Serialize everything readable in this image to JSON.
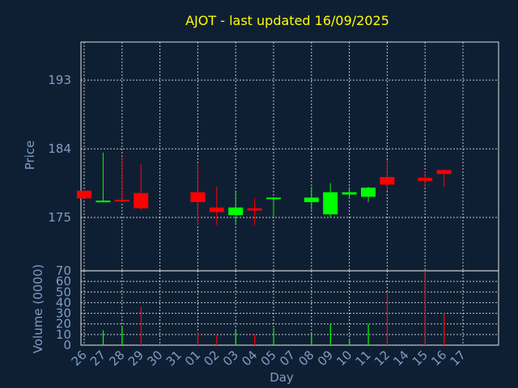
{
  "chart_data": [
    {
      "type": "candlestick",
      "title": "AJOT - last updated 16/09/2025",
      "ylabel": "Price",
      "ylim": [
        168,
        198
      ],
      "yticks": [
        166,
        175,
        184,
        193
      ],
      "grid": true,
      "colors": {
        "up": "#00ff00",
        "down": "#ff0000",
        "wick_up": "#00ff00",
        "wick_down": "#ff0000"
      },
      "categories": [
        "26",
        "27",
        "28",
        "29",
        "30",
        "31",
        "01",
        "02",
        "03",
        "04",
        "05",
        "07",
        "08",
        "09",
        "10",
        "11",
        "12",
        "14",
        "15",
        "16",
        "17"
      ],
      "candles": [
        {
          "day": "26",
          "open": 178.5,
          "high": 178.5,
          "low": 177.5,
          "close": 177.5
        },
        {
          "day": "27",
          "open": 177.2,
          "high": 183.5,
          "low": 177.0,
          "close": 177.2
        },
        {
          "day": "28",
          "open": 177.3,
          "high": 183.0,
          "low": 177.0,
          "close": 177.2
        },
        {
          "day": "29",
          "open": 178.2,
          "high": 182.0,
          "low": 176.0,
          "close": 176.2
        },
        {
          "day": "01",
          "open": 178.3,
          "high": 182.0,
          "low": 174.0,
          "close": 177.0
        },
        {
          "day": "02",
          "open": 176.3,
          "high": 179.0,
          "low": 174.0,
          "close": 175.7
        },
        {
          "day": "03",
          "open": 175.3,
          "high": 178.5,
          "low": 174.0,
          "close": 176.3
        },
        {
          "day": "04",
          "open": 176.2,
          "high": 177.5,
          "low": 174.0,
          "close": 175.9
        },
        {
          "day": "05",
          "open": 177.4,
          "high": 177.7,
          "low": 175.0,
          "close": 177.6
        },
        {
          "day": "08",
          "open": 177.0,
          "high": 179.0,
          "low": 176.0,
          "close": 177.6
        },
        {
          "day": "09",
          "open": 175.4,
          "high": 179.5,
          "low": 175.0,
          "close": 178.3
        },
        {
          "day": "10",
          "open": 178.0,
          "high": 179.0,
          "low": 177.5,
          "close": 178.3
        },
        {
          "day": "11",
          "open": 177.7,
          "high": 179.0,
          "low": 177.0,
          "close": 178.9
        },
        {
          "day": "12",
          "open": 180.3,
          "high": 182.5,
          "low": 178.5,
          "close": 179.3
        },
        {
          "day": "15",
          "open": 180.2,
          "high": 181.0,
          "low": 179.0,
          "close": 179.8
        },
        {
          "day": "16",
          "open": 181.2,
          "high": 181.3,
          "low": 179.0,
          "close": 180.7
        }
      ]
    },
    {
      "type": "bar",
      "ylabel": "Volume (0000)",
      "xlabel": "Day",
      "ylim": [
        0,
        70
      ],
      "yticks": [
        0,
        10,
        20,
        30,
        40,
        50,
        60,
        70
      ],
      "grid": true,
      "categories": [
        "26",
        "27",
        "28",
        "29",
        "30",
        "31",
        "01",
        "02",
        "03",
        "04",
        "05",
        "07",
        "08",
        "09",
        "10",
        "11",
        "12",
        "14",
        "15",
        "16",
        "17"
      ],
      "bars": [
        {
          "day": "27",
          "value": 14,
          "color": "#00ff00"
        },
        {
          "day": "28",
          "value": 17,
          "color": "#00ff00"
        },
        {
          "day": "29",
          "value": 36,
          "color": "#ff0000"
        },
        {
          "day": "01",
          "value": 12,
          "color": "#ff0000"
        },
        {
          "day": "02",
          "value": 10,
          "color": "#ff0000"
        },
        {
          "day": "03",
          "value": 14,
          "color": "#00ff00"
        },
        {
          "day": "04",
          "value": 10,
          "color": "#ff0000"
        },
        {
          "day": "05",
          "value": 16,
          "color": "#00ff00"
        },
        {
          "day": "08",
          "value": 11,
          "color": "#00ff00"
        },
        {
          "day": "09",
          "value": 20,
          "color": "#00ff00"
        },
        {
          "day": "10",
          "value": 6,
          "color": "#00ff00"
        },
        {
          "day": "11",
          "value": 20,
          "color": "#00ff00"
        },
        {
          "day": "12",
          "value": 50,
          "color": "#ff0000"
        },
        {
          "day": "15",
          "value": 70,
          "color": "#ff0000"
        },
        {
          "day": "16",
          "value": 30,
          "color": "#ff0000"
        }
      ]
    }
  ]
}
